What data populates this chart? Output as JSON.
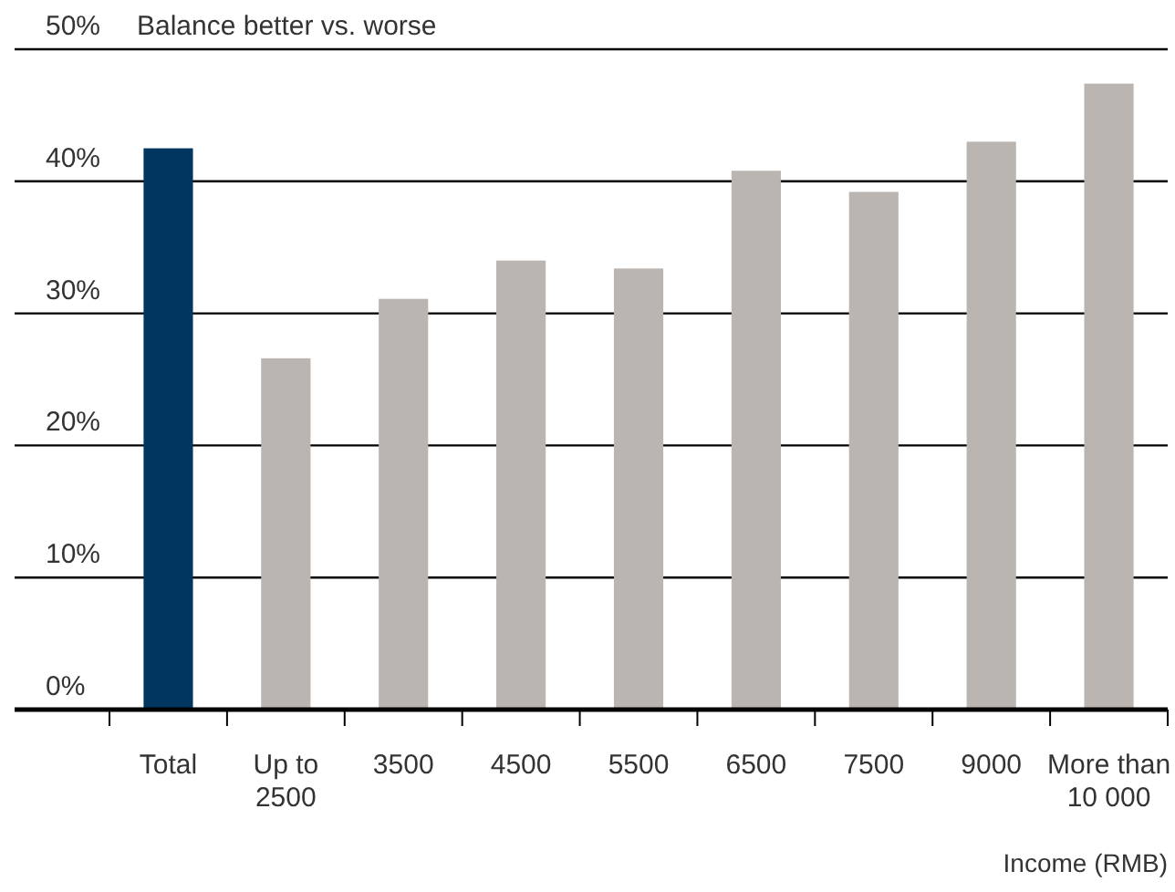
{
  "chart_data": {
    "type": "bar",
    "title": "Balance better vs. worse",
    "xlabel": "Income (RMB)",
    "categories": [
      "Total",
      "Up to 2500",
      "3500",
      "4500",
      "5500",
      "6500",
      "7500",
      "9000",
      "More than 10 000"
    ],
    "values": [
      42.5,
      26.6,
      31.1,
      34.0,
      33.4,
      40.8,
      39.2,
      43.0,
      47.4
    ],
    "colors": [
      "#003660",
      "#bab5b0",
      "#bab5b0",
      "#bab5b0",
      "#bab5b0",
      "#bab5b0",
      "#bab5b0",
      "#bab5b0",
      "#bab5b0"
    ],
    "ylim": [
      0,
      50
    ],
    "yticks": [
      {
        "value": 0,
        "label": "0%"
      },
      {
        "value": 10,
        "label": "10%"
      },
      {
        "value": 20,
        "label": "20%"
      },
      {
        "value": 30,
        "label": "30%"
      },
      {
        "value": 40,
        "label": "40%"
      },
      {
        "value": 50,
        "label": "50%"
      }
    ],
    "grid": "y"
  }
}
